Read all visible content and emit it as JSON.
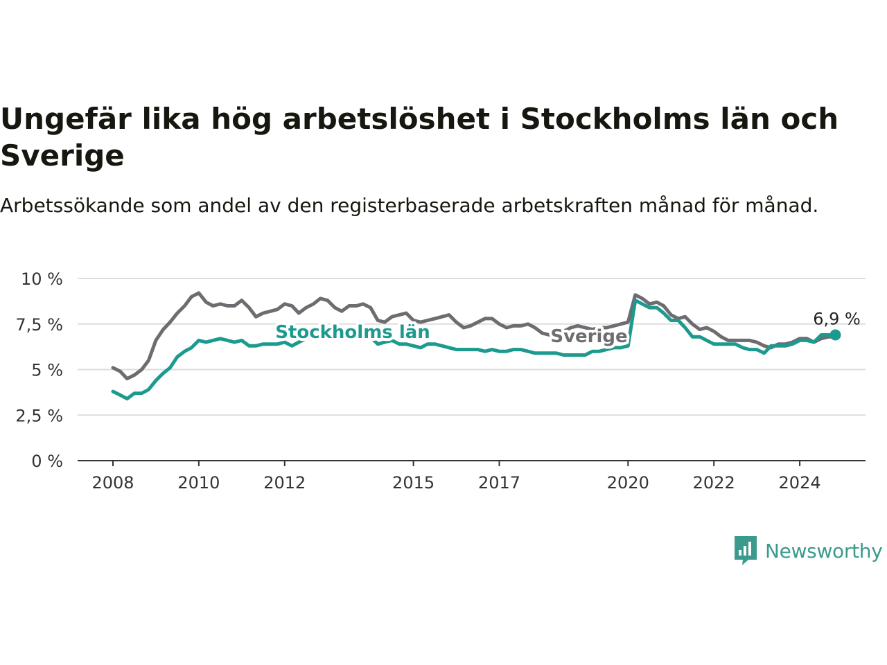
{
  "title": "Ungefär lika hög arbetslöshet i Stockholms län och Sverige",
  "subtitle": "Arbetssökande som andel av den registerbaserade arbetskraften månad för månad.",
  "brand": {
    "name": "Newsworthy",
    "icon": "newsworthy-logo-icon"
  },
  "chart_data": {
    "type": "line",
    "title": "Ungefär lika hög arbetslöshet i Stockholms län och Sverige",
    "subtitle": "Arbetssökande som andel av den registerbaserade arbetskraften månad för månad.",
    "xlabel": "",
    "ylabel": "",
    "xlim": [
      2008.0,
      2025.5
    ],
    "ylim": [
      0,
      10
    ],
    "y_ticks": [
      0,
      2.5,
      5,
      7.5,
      10
    ],
    "y_tick_labels": [
      "0 %",
      "2,5 %",
      "5 %",
      "7,5 %",
      "10 %"
    ],
    "x_ticks": [
      2008,
      2010,
      2012,
      2015,
      2017,
      2020,
      2022,
      2024
    ],
    "x_tick_labels": [
      "2008",
      "2010",
      "2012",
      "2015",
      "2017",
      "2020",
      "2022",
      "2024"
    ],
    "grid": true,
    "end_label": "6,9 %",
    "series": [
      {
        "name": "Sverige",
        "color": "#6d6c70",
        "x": [
          2008.0,
          2008.17,
          2008.33,
          2008.5,
          2008.67,
          2008.83,
          2009.0,
          2009.17,
          2009.33,
          2009.5,
          2009.67,
          2009.83,
          2010.0,
          2010.17,
          2010.33,
          2010.5,
          2010.67,
          2010.83,
          2011.0,
          2011.17,
          2011.33,
          2011.5,
          2011.67,
          2011.83,
          2012.0,
          2012.17,
          2012.33,
          2012.5,
          2012.67,
          2012.83,
          2013.0,
          2013.17,
          2013.33,
          2013.5,
          2013.67,
          2013.83,
          2014.0,
          2014.17,
          2014.33,
          2014.5,
          2014.67,
          2014.83,
          2015.0,
          2015.17,
          2015.33,
          2015.5,
          2015.67,
          2015.83,
          2016.0,
          2016.17,
          2016.33,
          2016.5,
          2016.67,
          2016.83,
          2017.0,
          2017.17,
          2017.33,
          2017.5,
          2017.67,
          2017.83,
          2018.0,
          2018.17,
          2018.33,
          2018.5,
          2018.67,
          2018.83,
          2019.0,
          2019.17,
          2019.33,
          2019.5,
          2019.67,
          2019.83,
          2020.0,
          2020.17,
          2020.33,
          2020.5,
          2020.67,
          2020.83,
          2021.0,
          2021.17,
          2021.33,
          2021.5,
          2021.67,
          2021.83,
          2022.0,
          2022.17,
          2022.33,
          2022.5,
          2022.67,
          2022.83,
          2023.0,
          2023.17,
          2023.33,
          2023.5,
          2023.67,
          2023.83,
          2024.0,
          2024.17,
          2024.33,
          2024.5,
          2024.67,
          2024.83
        ],
        "values": [
          5.1,
          4.9,
          4.5,
          4.7,
          5.0,
          5.5,
          6.6,
          7.2,
          7.6,
          8.1,
          8.5,
          9.0,
          9.2,
          8.7,
          8.5,
          8.6,
          8.5,
          8.5,
          8.8,
          8.4,
          7.9,
          8.1,
          8.2,
          8.3,
          8.6,
          8.5,
          8.1,
          8.4,
          8.6,
          8.9,
          8.8,
          8.4,
          8.2,
          8.5,
          8.5,
          8.6,
          8.4,
          7.7,
          7.6,
          7.9,
          8.0,
          8.1,
          7.7,
          7.6,
          7.7,
          7.8,
          7.9,
          8.0,
          7.6,
          7.3,
          7.4,
          7.6,
          7.8,
          7.8,
          7.5,
          7.3,
          7.4,
          7.4,
          7.5,
          7.3,
          7.0,
          6.9,
          7.0,
          7.1,
          7.3,
          7.4,
          7.3,
          7.2,
          7.3,
          7.3,
          7.4,
          7.5,
          7.6,
          9.1,
          8.9,
          8.6,
          8.7,
          8.5,
          8.0,
          7.8,
          7.9,
          7.5,
          7.2,
          7.3,
          7.1,
          6.8,
          6.6,
          6.6,
          6.6,
          6.6,
          6.5,
          6.3,
          6.2,
          6.4,
          6.4,
          6.5,
          6.7,
          6.7,
          6.5,
          6.7,
          6.8,
          6.8
        ]
      },
      {
        "name": "Stockholms län",
        "color": "#1c9a8f",
        "x": [
          2008.0,
          2008.17,
          2008.33,
          2008.5,
          2008.67,
          2008.83,
          2009.0,
          2009.17,
          2009.33,
          2009.5,
          2009.67,
          2009.83,
          2010.0,
          2010.17,
          2010.33,
          2010.5,
          2010.67,
          2010.83,
          2011.0,
          2011.17,
          2011.33,
          2011.5,
          2011.67,
          2011.83,
          2012.0,
          2012.17,
          2012.33,
          2012.5,
          2012.67,
          2012.83,
          2013.0,
          2013.17,
          2013.33,
          2013.5,
          2013.67,
          2013.83,
          2014.0,
          2014.17,
          2014.33,
          2014.5,
          2014.67,
          2014.83,
          2015.0,
          2015.17,
          2015.33,
          2015.5,
          2015.67,
          2015.83,
          2016.0,
          2016.17,
          2016.33,
          2016.5,
          2016.67,
          2016.83,
          2017.0,
          2017.17,
          2017.33,
          2017.5,
          2017.67,
          2017.83,
          2018.0,
          2018.17,
          2018.33,
          2018.5,
          2018.67,
          2018.83,
          2019.0,
          2019.17,
          2019.33,
          2019.5,
          2019.67,
          2019.83,
          2020.0,
          2020.17,
          2020.33,
          2020.5,
          2020.67,
          2020.83,
          2021.0,
          2021.17,
          2021.33,
          2021.5,
          2021.67,
          2021.83,
          2022.0,
          2022.17,
          2022.33,
          2022.5,
          2022.67,
          2022.83,
          2023.0,
          2023.17,
          2023.33,
          2023.5,
          2023.67,
          2023.83,
          2024.0,
          2024.17,
          2024.33,
          2024.5,
          2024.67,
          2024.83
        ],
        "values": [
          3.8,
          3.6,
          3.4,
          3.7,
          3.7,
          3.9,
          4.4,
          4.8,
          5.1,
          5.7,
          6.0,
          6.2,
          6.6,
          6.5,
          6.6,
          6.7,
          6.6,
          6.5,
          6.6,
          6.3,
          6.3,
          6.4,
          6.4,
          6.4,
          6.5,
          6.3,
          6.5,
          6.7,
          6.9,
          7.0,
          7.0,
          6.9,
          6.9,
          6.9,
          7.0,
          6.9,
          6.8,
          6.4,
          6.5,
          6.6,
          6.4,
          6.4,
          6.3,
          6.2,
          6.4,
          6.4,
          6.3,
          6.2,
          6.1,
          6.1,
          6.1,
          6.1,
          6.0,
          6.1,
          6.0,
          6.0,
          6.1,
          6.1,
          6.0,
          5.9,
          5.9,
          5.9,
          5.9,
          5.8,
          5.8,
          5.8,
          5.8,
          6.0,
          6.0,
          6.1,
          6.2,
          6.2,
          6.3,
          8.8,
          8.6,
          8.4,
          8.4,
          8.1,
          7.7,
          7.7,
          7.3,
          6.8,
          6.8,
          6.6,
          6.4,
          6.4,
          6.4,
          6.4,
          6.2,
          6.1,
          6.1,
          5.9,
          6.3,
          6.3,
          6.3,
          6.4,
          6.6,
          6.6,
          6.5,
          6.9,
          6.9,
          6.9
        ]
      }
    ]
  }
}
